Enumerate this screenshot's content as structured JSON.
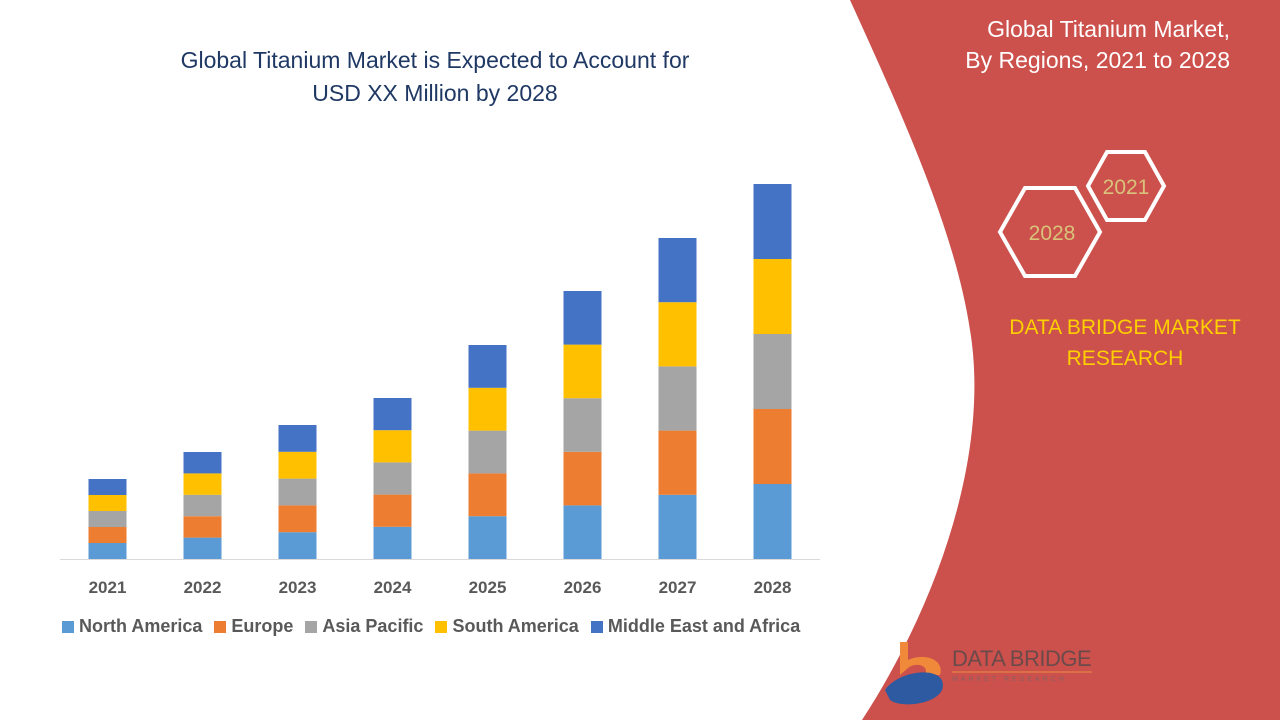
{
  "header": {
    "title_line1": "Global Titanium Market is Expected to Account for",
    "title_line2": "USD XX Million by 2028"
  },
  "side_panel": {
    "title_line1": "Global Titanium Market,",
    "title_line2": "By Regions, 2021 to 2028",
    "hex_start": "2021",
    "hex_end": "2028",
    "brand_line1": "DATA BRIDGE MARKET",
    "brand_line2": "RESEARCH",
    "logo_text": "DATA BRIDGE",
    "logo_subtext": "MARKET RESEARCH",
    "panel_color": "#cc504c"
  },
  "chart_data": {
    "type": "bar",
    "stacked": true,
    "title": "Global Titanium Market is Expected to Account for USD XX Million by 2028",
    "categories": [
      "2021",
      "2022",
      "2023",
      "2024",
      "2025",
      "2026",
      "2027",
      "2028"
    ],
    "series": [
      {
        "name": "North America",
        "color": "#5b9bd5",
        "values": [
          16,
          21.4,
          26.8,
          32.2,
          42.8,
          53.6,
          64.2,
          75
        ]
      },
      {
        "name": "Europe",
        "color": "#ed7d31",
        "values": [
          16,
          21.4,
          26.8,
          32.2,
          42.8,
          53.6,
          64.2,
          75
        ]
      },
      {
        "name": "Asia Pacific",
        "color": "#a5a5a5",
        "values": [
          16,
          21.4,
          26.8,
          32.2,
          42.8,
          53.6,
          64.2,
          75
        ]
      },
      {
        "name": "South America",
        "color": "#ffc000",
        "values": [
          16,
          21.4,
          26.8,
          32.2,
          42.8,
          53.6,
          64.2,
          75
        ]
      },
      {
        "name": "Middle East and Africa",
        "color": "#4472c4",
        "values": [
          16,
          21.4,
          26.8,
          32.2,
          42.8,
          53.6,
          64.2,
          75
        ]
      }
    ],
    "xlabel": "",
    "ylabel": "",
    "ylim": [
      0,
      400
    ],
    "grid": false,
    "y_axis_shown": false,
    "legend_position": "bottom"
  }
}
